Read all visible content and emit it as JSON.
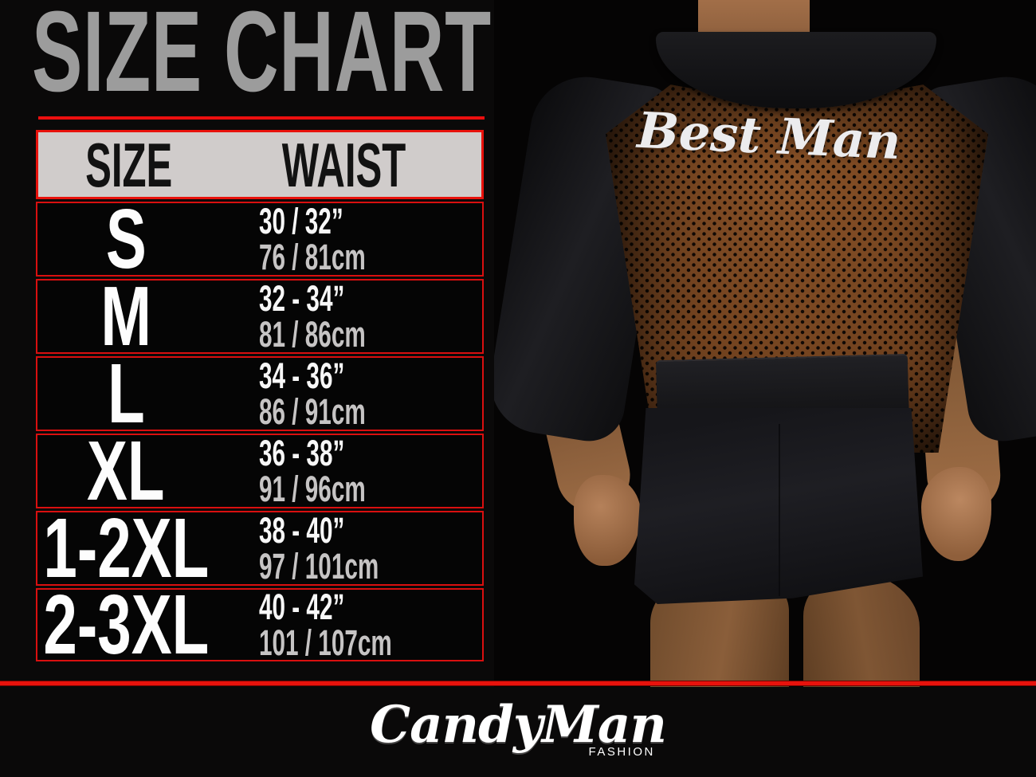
{
  "page": {
    "background": "#0a0909",
    "accent_red": "#e8120c",
    "title_gray": "#9c9c9c",
    "header_bg": "#d0cccb"
  },
  "title": {
    "text": "SIZE CHART"
  },
  "table": {
    "headers": [
      "SIZE",
      "WAIST"
    ],
    "rows": [
      {
        "size": "S",
        "waist_in": "30 / 32”",
        "waist_cm": "76 / 81cm"
      },
      {
        "size": "M",
        "waist_in": "32 - 34”",
        "waist_cm": "81 / 86cm"
      },
      {
        "size": "L",
        "waist_in": "34 - 36”",
        "waist_cm": "86 / 91cm"
      },
      {
        "size": "XL",
        "waist_in": "36 - 38”",
        "waist_cm": "91 / 96cm"
      },
      {
        "size": "1-2XL",
        "waist_in": "38 - 40”",
        "waist_cm": "97 / 101cm"
      },
      {
        "size": "2-3XL",
        "waist_in": "40 - 42”",
        "waist_cm": "101 / 107cm"
      }
    ]
  },
  "photo": {
    "garment_text": "Best Man"
  },
  "footer": {
    "brand": "CandyMan",
    "brand_sub": "FASHION"
  },
  "chart_data": {
    "type": "table",
    "title": "SIZE CHART",
    "columns": [
      "SIZE",
      "WAIST"
    ],
    "rows": [
      [
        "S",
        "30 / 32”",
        "76 / 81cm"
      ],
      [
        "M",
        "32 - 34”",
        "81 / 86cm"
      ],
      [
        "L",
        "34 - 36”",
        "86 / 91cm"
      ],
      [
        "XL",
        "36 - 38”",
        "91 / 96cm"
      ],
      [
        "1-2XL",
        "38 - 40”",
        "97 / 101cm"
      ],
      [
        "2-3XL",
        "40 - 42”",
        "101 / 107cm"
      ]
    ]
  }
}
